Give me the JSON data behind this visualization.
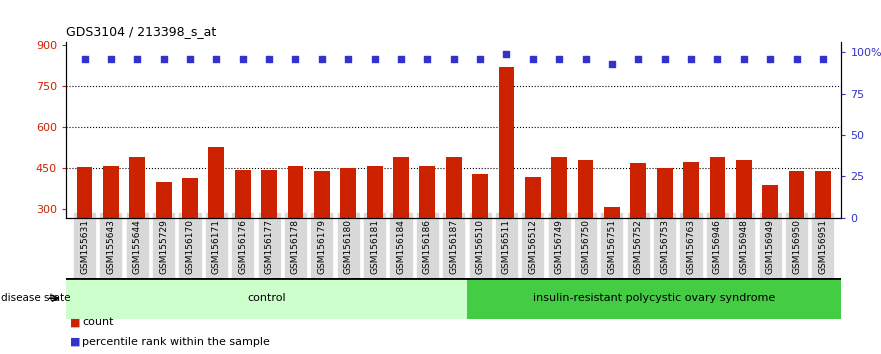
{
  "title": "GDS3104 / 213398_s_at",
  "samples": [
    "GSM155631",
    "GSM155643",
    "GSM155644",
    "GSM155729",
    "GSM156170",
    "GSM156171",
    "GSM156176",
    "GSM156177",
    "GSM156178",
    "GSM156179",
    "GSM156180",
    "GSM156181",
    "GSM156184",
    "GSM156186",
    "GSM156187",
    "GSM156510",
    "GSM156511",
    "GSM156512",
    "GSM156749",
    "GSM156750",
    "GSM156751",
    "GSM156752",
    "GSM156753",
    "GSM156763",
    "GSM156946",
    "GSM156948",
    "GSM156949",
    "GSM156950",
    "GSM156951"
  ],
  "bar_values": [
    455,
    460,
    490,
    400,
    415,
    530,
    445,
    445,
    460,
    440,
    450,
    460,
    490,
    460,
    490,
    430,
    820,
    420,
    490,
    480,
    310,
    470,
    450,
    475,
    490,
    480,
    390,
    440,
    440
  ],
  "percentile_values": [
    96,
    96,
    96,
    96,
    96,
    96,
    96,
    96,
    96,
    96,
    96,
    96,
    96,
    96,
    96,
    96,
    99,
    96,
    96,
    96,
    93,
    96,
    96,
    96,
    96,
    96,
    96,
    96,
    96
  ],
  "group_control_count": 15,
  "group_disease_count": 14,
  "control_label": "control",
  "disease_label": "insulin-resistant polycystic ovary syndrome",
  "disease_state_label": "disease state",
  "bar_color": "#cc2200",
  "percentile_color": "#3333cc",
  "control_bg": "#ccffcc",
  "disease_bg": "#44cc44",
  "ylim_left": [
    270,
    910
  ],
  "ylim_right": [
    0,
    106
  ],
  "yticks_left": [
    300,
    450,
    600,
    750,
    900
  ],
  "yticks_right": [
    0,
    25,
    50,
    75,
    100
  ],
  "hlines": [
    450,
    600,
    750
  ],
  "legend_count_label": "count",
  "legend_percentile_label": "percentile rank within the sample"
}
